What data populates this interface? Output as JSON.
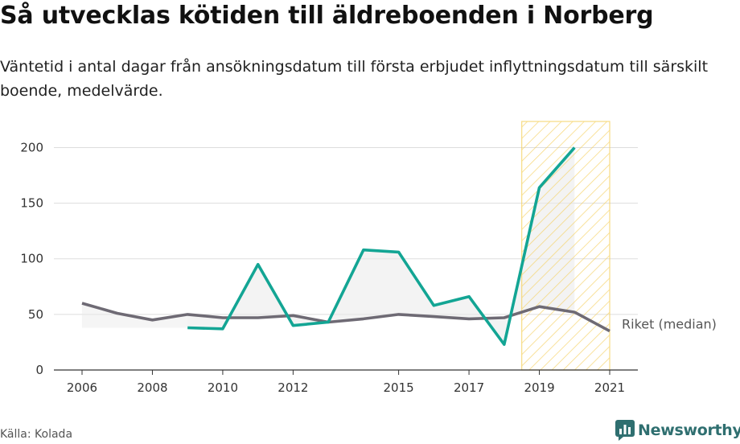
{
  "title": "Så utvecklas kötiden till äldreboenden i Norberg",
  "subtitle": "Väntetid i antal dagar från ansökningsdatum till första erbjudet inflyttningsdatum till särskilt boende, medelvärde.",
  "source": "Källa: Kolada",
  "brand": "Newsworthy",
  "colors": {
    "norberg": "#13a594",
    "riket": "#6e6a74",
    "highlight": "#f5cf5a",
    "grid": "#dddddd"
  },
  "chart_data": {
    "type": "line",
    "x_ticks": [
      "2006",
      "2008",
      "2010",
      "2012",
      "2015",
      "2017",
      "2019",
      "2021"
    ],
    "y_ticks": [
      "0",
      "50",
      "100",
      "150",
      "200"
    ],
    "ylim": [
      0,
      230
    ],
    "xlim": [
      2005.2,
      2021.8
    ],
    "highlight_range": [
      2018.5,
      2021
    ],
    "series": [
      {
        "name": "",
        "color": "#13a594",
        "x": [
          2009,
          2010,
          2011,
          2012,
          2013,
          2014,
          2015,
          2016,
          2017,
          2018,
          2019,
          2020
        ],
        "values": [
          38,
          37,
          95,
          40,
          43,
          108,
          106,
          58,
          66,
          23,
          164,
          200
        ]
      },
      {
        "name": "Riket (median)",
        "color": "#6e6a74",
        "x": [
          2006,
          2007,
          2008,
          2009,
          2010,
          2011,
          2012,
          2013,
          2014,
          2015,
          2016,
          2017,
          2018,
          2019,
          2020,
          2021
        ],
        "values": [
          60,
          51,
          45,
          50,
          47,
          47,
          49,
          43,
          46,
          50,
          48,
          46,
          47,
          57,
          52,
          35
        ]
      }
    ]
  }
}
